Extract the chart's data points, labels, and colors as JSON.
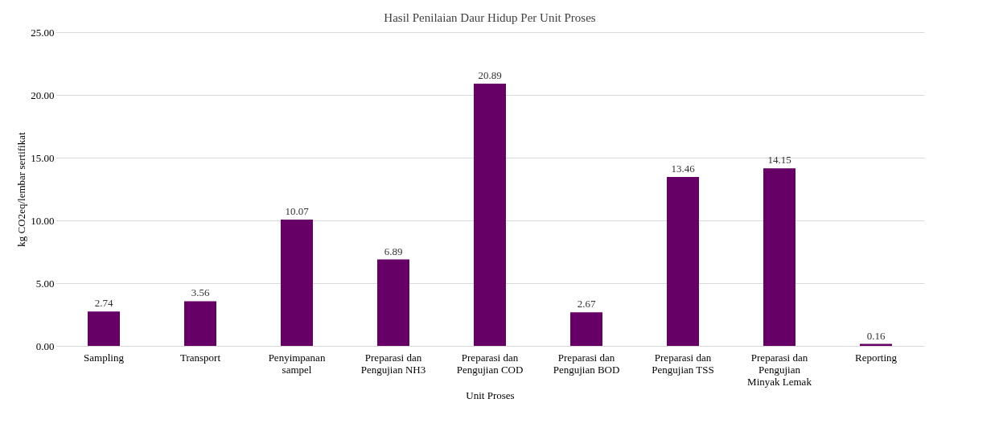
{
  "chart_data": {
    "type": "bar",
    "title": "Hasil Penilaian Daur Hidup Per Unit Proses",
    "xlabel": "Unit Proses",
    "ylabel": "kg CO2eq/lembar sertifikat",
    "categories": [
      "Sampling",
      "Transport",
      "Penyimpanan sampel",
      "Preparasi dan Pengujian NH3",
      "Preparasi dan Pengujian COD",
      "Preparasi dan Pengujian BOD",
      "Preparasi dan Pengujian TSS",
      "Preparasi dan Pengujian Minyak Lemak",
      "Reporting"
    ],
    "values": [
      2.74,
      3.56,
      10.07,
      6.89,
      20.89,
      2.67,
      13.46,
      14.15,
      0.16
    ],
    "color": "#660066",
    "ylim": [
      0,
      25
    ],
    "yticks": [
      {
        "value": 0,
        "label": "0.00"
      },
      {
        "value": 5,
        "label": "5.00"
      },
      {
        "value": 10,
        "label": "10.00"
      },
      {
        "value": 15,
        "label": "15.00"
      },
      {
        "value": 20,
        "label": "20.00"
      },
      {
        "value": 25,
        "label": "25.00"
      }
    ],
    "grid": "y",
    "data_labels": true
  }
}
